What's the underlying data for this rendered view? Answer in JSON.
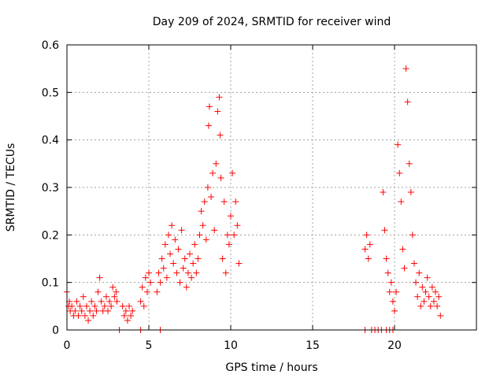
{
  "chart_data": {
    "type": "scatter",
    "title": "Day 209 of 2024, SRMTID for receiver wind",
    "xlabel": "GPS time / hours",
    "ylabel": "SRMTID / TECUs",
    "xlim": [
      0,
      25
    ],
    "ylim": [
      0,
      0.6
    ],
    "xticks": [
      0,
      5,
      10,
      15,
      20
    ],
    "xtick_labels": [
      "0",
      "5",
      "10",
      "15",
      "20"
    ],
    "yticks": [
      0,
      0.1,
      0.2,
      0.3,
      0.4,
      0.5,
      0.6
    ],
    "ytick_labels": [
      "0",
      "0.1",
      "0.2",
      "0.3",
      "0.4",
      "0.5",
      "0.6"
    ],
    "grid": true,
    "marker": "+",
    "series": [
      {
        "name": "wind",
        "color": "#ff0000",
        "x": [
          0.0,
          0.1,
          0.15,
          0.2,
          0.3,
          0.4,
          0.5,
          0.6,
          0.7,
          0.8,
          0.9,
          1.0,
          1.1,
          1.2,
          1.3,
          1.4,
          1.5,
          1.6,
          1.7,
          1.8,
          1.9,
          2.0,
          2.1,
          2.2,
          2.3,
          2.4,
          2.5,
          2.6,
          2.7,
          2.8,
          2.9,
          3.0,
          3.05,
          3.4,
          3.5,
          3.6,
          3.7,
          3.8,
          3.9,
          4.0,
          4.5,
          4.6,
          4.7,
          4.8,
          4.9,
          5.0,
          5.1,
          5.5,
          5.6,
          5.7,
          5.8,
          5.9,
          6.0,
          6.1,
          6.2,
          6.3,
          6.4,
          6.5,
          6.6,
          6.7,
          6.8,
          6.9,
          7.0,
          7.1,
          7.2,
          7.3,
          7.4,
          7.5,
          7.6,
          7.7,
          7.8,
          7.9,
          8.0,
          8.1,
          8.2,
          8.3,
          8.4,
          8.5,
          8.6,
          8.65,
          8.7,
          8.8,
          8.9,
          9.0,
          9.1,
          9.2,
          9.3,
          9.35,
          9.4,
          9.5,
          9.6,
          9.7,
          9.8,
          9.9,
          10.0,
          10.1,
          10.2,
          10.3,
          10.4,
          10.5,
          18.2,
          18.3,
          18.4,
          18.5,
          19.3,
          19.4,
          19.5,
          19.6,
          19.7,
          19.8,
          19.9,
          20.0,
          20.1,
          20.2,
          20.3,
          20.4,
          20.5,
          20.6,
          20.7,
          20.8,
          20.9,
          21.0,
          21.1,
          21.2,
          21.3,
          21.4,
          21.5,
          21.6,
          21.7,
          21.8,
          21.9,
          22.0,
          22.1,
          22.2,
          22.3,
          22.4,
          22.5,
          22.6,
          22.7,
          22.8,
          3.2,
          4.5,
          5.7,
          18.2,
          18.6,
          18.8,
          19.0,
          19.2,
          19.5,
          19.7,
          19.9
        ],
        "y": [
          0.08,
          0.05,
          0.06,
          0.04,
          0.05,
          0.03,
          0.04,
          0.06,
          0.03,
          0.05,
          0.04,
          0.07,
          0.03,
          0.05,
          0.02,
          0.04,
          0.06,
          0.03,
          0.05,
          0.04,
          0.08,
          0.11,
          0.06,
          0.04,
          0.05,
          0.07,
          0.04,
          0.06,
          0.05,
          0.09,
          0.07,
          0.08,
          0.06,
          0.05,
          0.03,
          0.04,
          0.02,
          0.05,
          0.03,
          0.04,
          0.06,
          0.09,
          0.05,
          0.11,
          0.08,
          0.12,
          0.1,
          0.08,
          0.12,
          0.1,
          0.15,
          0.13,
          0.18,
          0.11,
          0.2,
          0.16,
          0.22,
          0.14,
          0.19,
          0.12,
          0.17,
          0.1,
          0.21,
          0.13,
          0.15,
          0.09,
          0.12,
          0.16,
          0.11,
          0.14,
          0.18,
          0.12,
          0.15,
          0.2,
          0.25,
          0.22,
          0.27,
          0.19,
          0.3,
          0.43,
          0.47,
          0.28,
          0.33,
          0.21,
          0.35,
          0.46,
          0.49,
          0.41,
          0.32,
          0.15,
          0.27,
          0.12,
          0.2,
          0.18,
          0.24,
          0.33,
          0.2,
          0.27,
          0.22,
          0.14,
          0.17,
          0.2,
          0.15,
          0.18,
          0.29,
          0.21,
          0.15,
          0.12,
          0.08,
          0.1,
          0.06,
          0.04,
          0.08,
          0.39,
          0.33,
          0.27,
          0.17,
          0.13,
          0.55,
          0.48,
          0.35,
          0.29,
          0.2,
          0.14,
          0.1,
          0.07,
          0.12,
          0.05,
          0.09,
          0.06,
          0.08,
          0.11,
          0.07,
          0.05,
          0.09,
          0.06,
          0.08,
          0.05,
          0.07,
          0.03,
          0.0,
          0.0,
          0.0,
          0.0,
          0.0,
          0.0,
          0.0,
          0.0,
          0.0,
          0.0,
          0.0
        ]
      }
    ]
  }
}
